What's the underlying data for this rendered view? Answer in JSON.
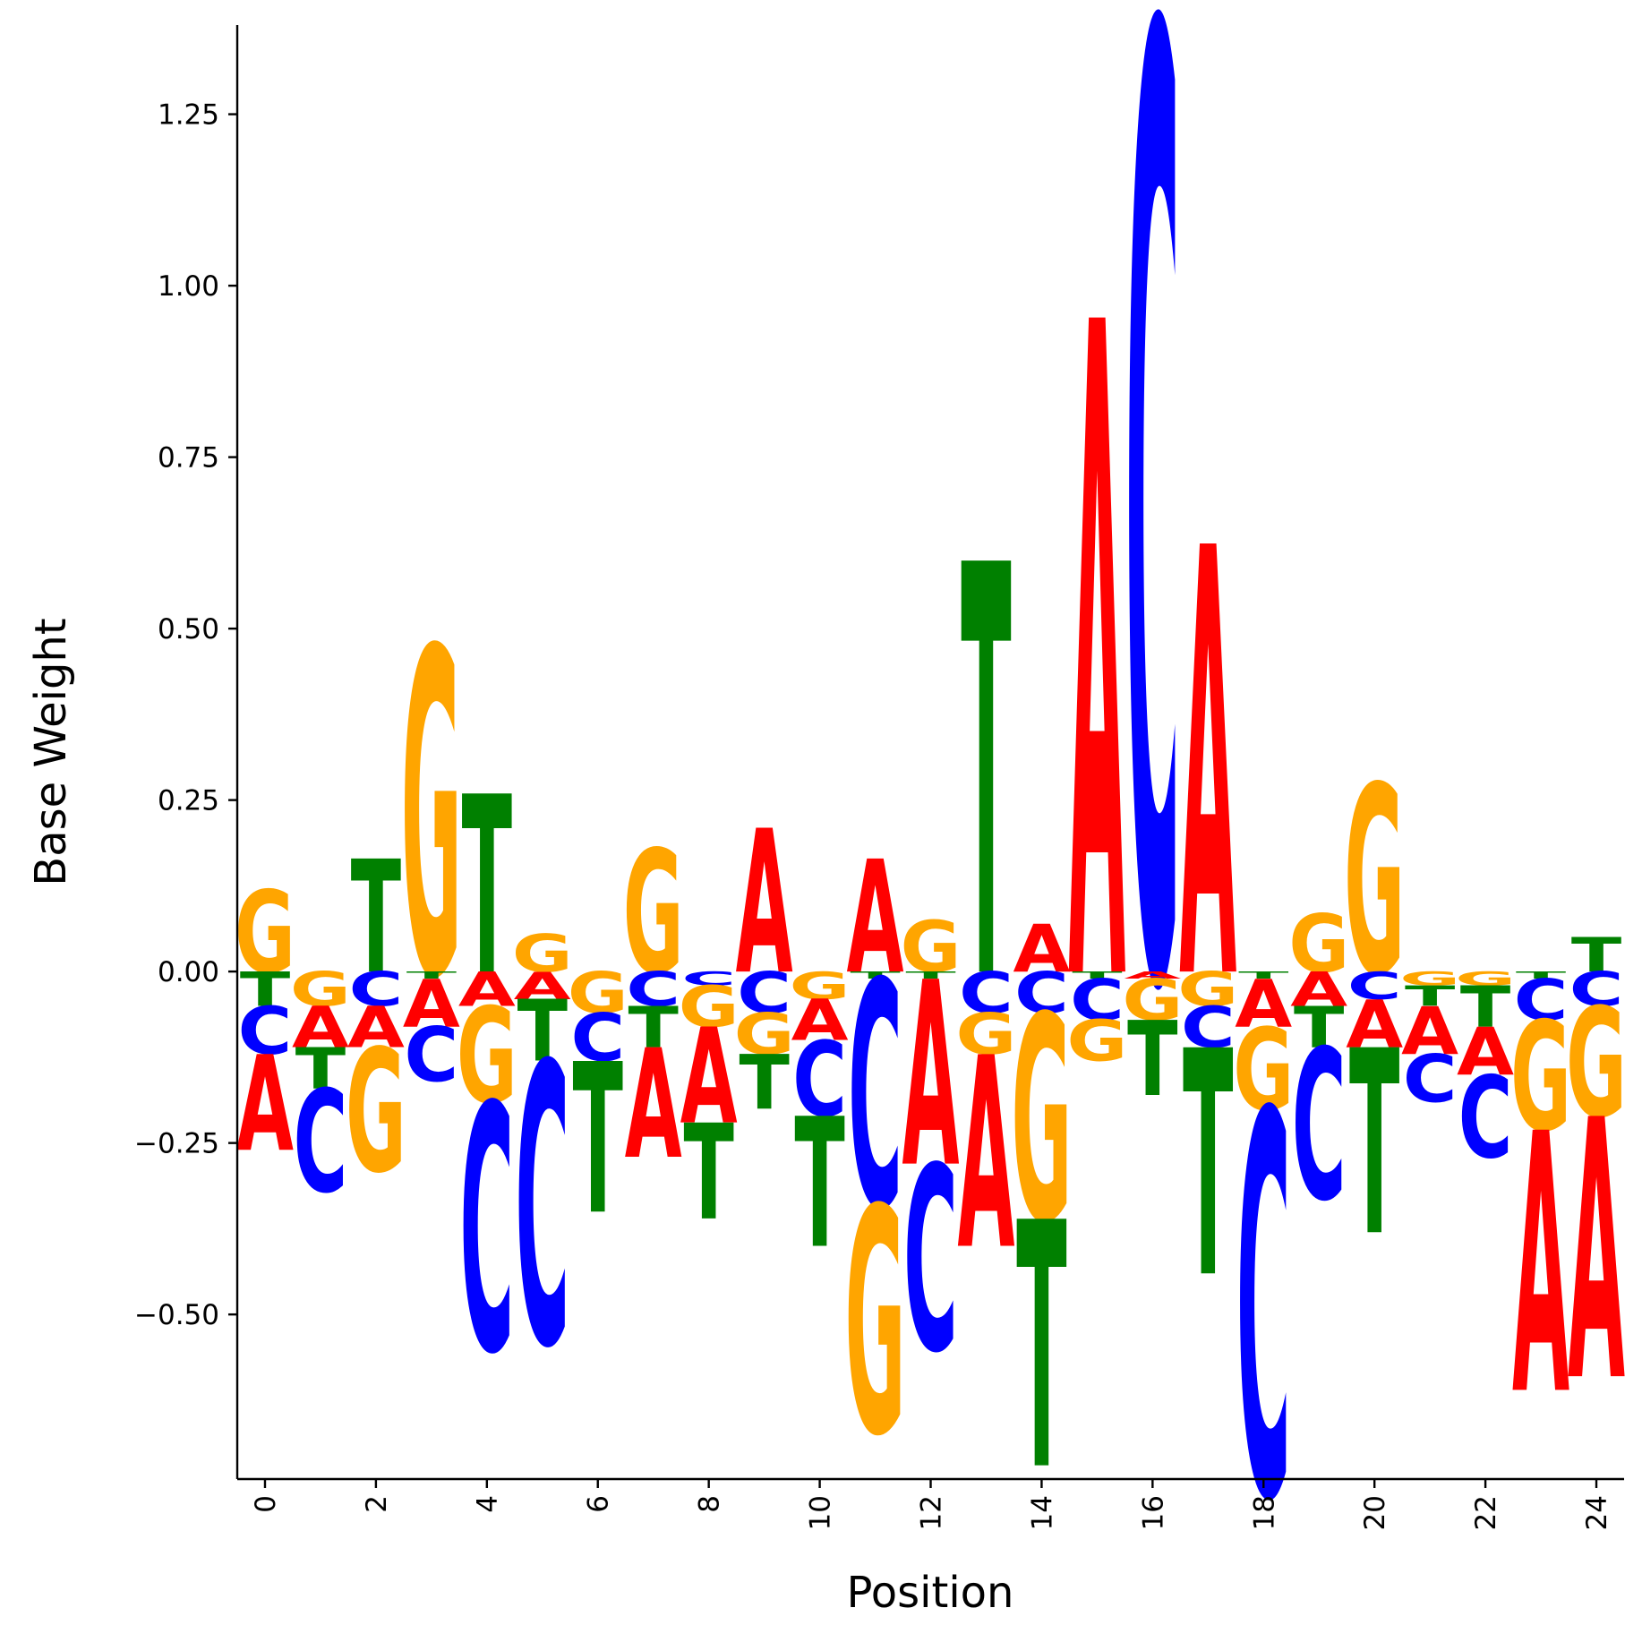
{
  "chart_data": {
    "type": "sequence-logo",
    "xlabel": "Position",
    "ylabel": "Base Weight",
    "xlim": [
      -0.5,
      24.5
    ],
    "ylim": [
      -0.74,
      1.38
    ],
    "xticks": [
      0,
      2,
      4,
      6,
      8,
      10,
      12,
      14,
      16,
      18,
      20,
      22,
      24
    ],
    "xtick_labels": [
      "0",
      "2",
      "4",
      "6",
      "8",
      "10",
      "12",
      "14",
      "16",
      "18",
      "20",
      "22",
      "24"
    ],
    "yticks": [
      -0.5,
      -0.25,
      0.0,
      0.25,
      0.5,
      0.75,
      1.0,
      1.25
    ],
    "ytick_labels": [
      "−0.50",
      "−0.25",
      "0.00",
      "0.25",
      "0.50",
      "0.75",
      "1.00",
      "1.25"
    ],
    "colors": {
      "A": "#ff0000",
      "C": "#0000ff",
      "G": "#ffa500",
      "T": "#008000"
    },
    "positions": [
      {
        "pos": 0,
        "weights": {
          "A": -0.14,
          "C": -0.07,
          "G": 0.12,
          "T": -0.05
        }
      },
      {
        "pos": 1,
        "weights": {
          "A": -0.06,
          "C": -0.15,
          "G": -0.05,
          "T": -0.06
        }
      },
      {
        "pos": 2,
        "weights": {
          "A": -0.06,
          "C": -0.05,
          "G": -0.18,
          "T": 0.165
        }
      },
      {
        "pos": 3,
        "weights": {
          "A": -0.07,
          "C": -0.08,
          "G": 0.475,
          "T": -0.01
        }
      },
      {
        "pos": 4,
        "weights": {
          "A": -0.05,
          "C": -0.36,
          "G": -0.14,
          "T": 0.26
        }
      },
      {
        "pos": 5,
        "weights": {
          "A": -0.04,
          "C": -0.41,
          "G": 0.055,
          "T": -0.09
        }
      },
      {
        "pos": 6,
        "weights": {
          "A": 0.0,
          "C": -0.07,
          "G": -0.06,
          "T": -0.22
        }
      },
      {
        "pos": 7,
        "weights": {
          "A": -0.16,
          "C": -0.05,
          "G": 0.18,
          "T": -0.06
        }
      },
      {
        "pos": 8,
        "weights": {
          "A": -0.14,
          "C": -0.02,
          "G": -0.06,
          "T": -0.14
        }
      },
      {
        "pos": 9,
        "weights": {
          "A": 0.21,
          "C": -0.06,
          "G": -0.06,
          "T": -0.08
        }
      },
      {
        "pos": 10,
        "weights": {
          "A": -0.06,
          "C": -0.11,
          "G": -0.04,
          "T": -0.19
        }
      },
      {
        "pos": 11,
        "weights": {
          "A": 0.165,
          "C": -0.33,
          "G": -0.33,
          "T": -0.01
        }
      },
      {
        "pos": 12,
        "weights": {
          "A": -0.27,
          "C": -0.27,
          "G": 0.075,
          "T": -0.01
        }
      },
      {
        "pos": 13,
        "weights": {
          "A": -0.28,
          "C": -0.06,
          "G": -0.06,
          "T": 0.6
        }
      },
      {
        "pos": 14,
        "weights": {
          "A": 0.07,
          "C": -0.06,
          "G": -0.3,
          "T": -0.36
        }
      },
      {
        "pos": 15,
        "weights": {
          "A": 0.955,
          "C": -0.06,
          "G": -0.06,
          "T": -0.01
        }
      },
      {
        "pos": 16,
        "weights": {
          "A": -0.01,
          "C": 1.38,
          "G": -0.06,
          "T": -0.11
        }
      },
      {
        "pos": 17,
        "weights": {
          "A": 0.625,
          "C": -0.06,
          "G": -0.05,
          "T": -0.33
        }
      },
      {
        "pos": 18,
        "weights": {
          "A": -0.07,
          "C": -0.56,
          "G": -0.12,
          "T": -0.01
        }
      },
      {
        "pos": 19,
        "weights": {
          "A": -0.05,
          "C": -0.22,
          "G": 0.085,
          "T": -0.06
        }
      },
      {
        "pos": 20,
        "weights": {
          "A": -0.07,
          "C": -0.04,
          "G": 0.275,
          "T": -0.27
        }
      },
      {
        "pos": 21,
        "weights": {
          "A": -0.07,
          "C": -0.07,
          "G": -0.02,
          "T": -0.03
        }
      },
      {
        "pos": 22,
        "weights": {
          "A": -0.07,
          "C": -0.12,
          "G": -0.02,
          "T": -0.06
        }
      },
      {
        "pos": 23,
        "weights": {
          "A": -0.38,
          "C": -0.06,
          "G": -0.16,
          "T": -0.01
        }
      },
      {
        "pos": 24,
        "weights": {
          "A": -0.38,
          "C": -0.05,
          "G": -0.16,
          "T": 0.05
        }
      }
    ]
  }
}
